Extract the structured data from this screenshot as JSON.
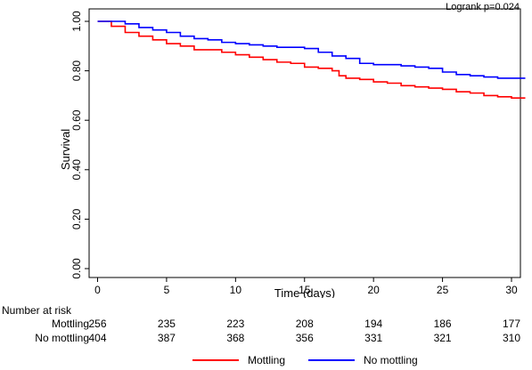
{
  "chart_data": {
    "type": "line",
    "subtype": "kaplan-meier",
    "title": "",
    "annotation": "Logrank p=0.024",
    "xlabel": "Time (days)",
    "ylabel": "Survival",
    "xlim": [
      0,
      31
    ],
    "ylim": [
      0,
      1.0
    ],
    "xticks": [
      0,
      5,
      10,
      15,
      20,
      25,
      30
    ],
    "yticks": [
      "0.00",
      "0.20",
      "0.40",
      "0.60",
      "0.80",
      "1.00"
    ],
    "grid": false,
    "legend_position": "bottom",
    "series": [
      {
        "name": "Mottling",
        "color": "#ff0000",
        "points": [
          [
            0,
            1.0
          ],
          [
            1,
            0.98
          ],
          [
            2,
            0.955
          ],
          [
            3,
            0.94
          ],
          [
            4,
            0.925
          ],
          [
            5,
            0.91
          ],
          [
            6,
            0.9
          ],
          [
            7,
            0.885
          ],
          [
            9,
            0.875
          ],
          [
            10,
            0.865
          ],
          [
            11,
            0.855
          ],
          [
            12,
            0.845
          ],
          [
            13,
            0.835
          ],
          [
            14,
            0.83
          ],
          [
            15,
            0.815
          ],
          [
            16,
            0.81
          ],
          [
            17,
            0.8
          ],
          [
            17.5,
            0.78
          ],
          [
            18,
            0.77
          ],
          [
            19,
            0.765
          ],
          [
            20,
            0.755
          ],
          [
            21,
            0.75
          ],
          [
            22,
            0.74
          ],
          [
            23,
            0.735
          ],
          [
            24,
            0.73
          ],
          [
            25,
            0.725
          ],
          [
            26,
            0.715
          ],
          [
            27,
            0.71
          ],
          [
            28,
            0.7
          ],
          [
            29,
            0.695
          ],
          [
            30,
            0.69
          ],
          [
            31,
            0.69
          ]
        ]
      },
      {
        "name": "No mottling",
        "color": "#0000ff",
        "points": [
          [
            0,
            1.0
          ],
          [
            2,
            0.99
          ],
          [
            3,
            0.975
          ],
          [
            4,
            0.965
          ],
          [
            5,
            0.955
          ],
          [
            6,
            0.94
          ],
          [
            7,
            0.93
          ],
          [
            8,
            0.925
          ],
          [
            9,
            0.915
          ],
          [
            10,
            0.91
          ],
          [
            11,
            0.905
          ],
          [
            12,
            0.9
          ],
          [
            13,
            0.895
          ],
          [
            15,
            0.89
          ],
          [
            16,
            0.875
          ],
          [
            17,
            0.86
          ],
          [
            18,
            0.85
          ],
          [
            19,
            0.83
          ],
          [
            20,
            0.825
          ],
          [
            22,
            0.82
          ],
          [
            23,
            0.815
          ],
          [
            24,
            0.81
          ],
          [
            25,
            0.795
          ],
          [
            26,
            0.785
          ],
          [
            27,
            0.78
          ],
          [
            28,
            0.775
          ],
          [
            29,
            0.77
          ],
          [
            31,
            0.77
          ]
        ]
      }
    ]
  },
  "risk_table": {
    "title": "Number at risk",
    "times": [
      0,
      5,
      10,
      15,
      20,
      25,
      30
    ],
    "rows": [
      {
        "label": "Mottling",
        "values": [
          "256",
          "235",
          "223",
          "208",
          "194",
          "186",
          "177"
        ]
      },
      {
        "label": "No mottling",
        "values": [
          "404",
          "387",
          "368",
          "356",
          "331",
          "321",
          "310"
        ]
      }
    ]
  },
  "legend": {
    "items": [
      {
        "label": "Mottling",
        "color": "#ff0000"
      },
      {
        "label": "No mottling",
        "color": "#0000ff"
      }
    ]
  }
}
